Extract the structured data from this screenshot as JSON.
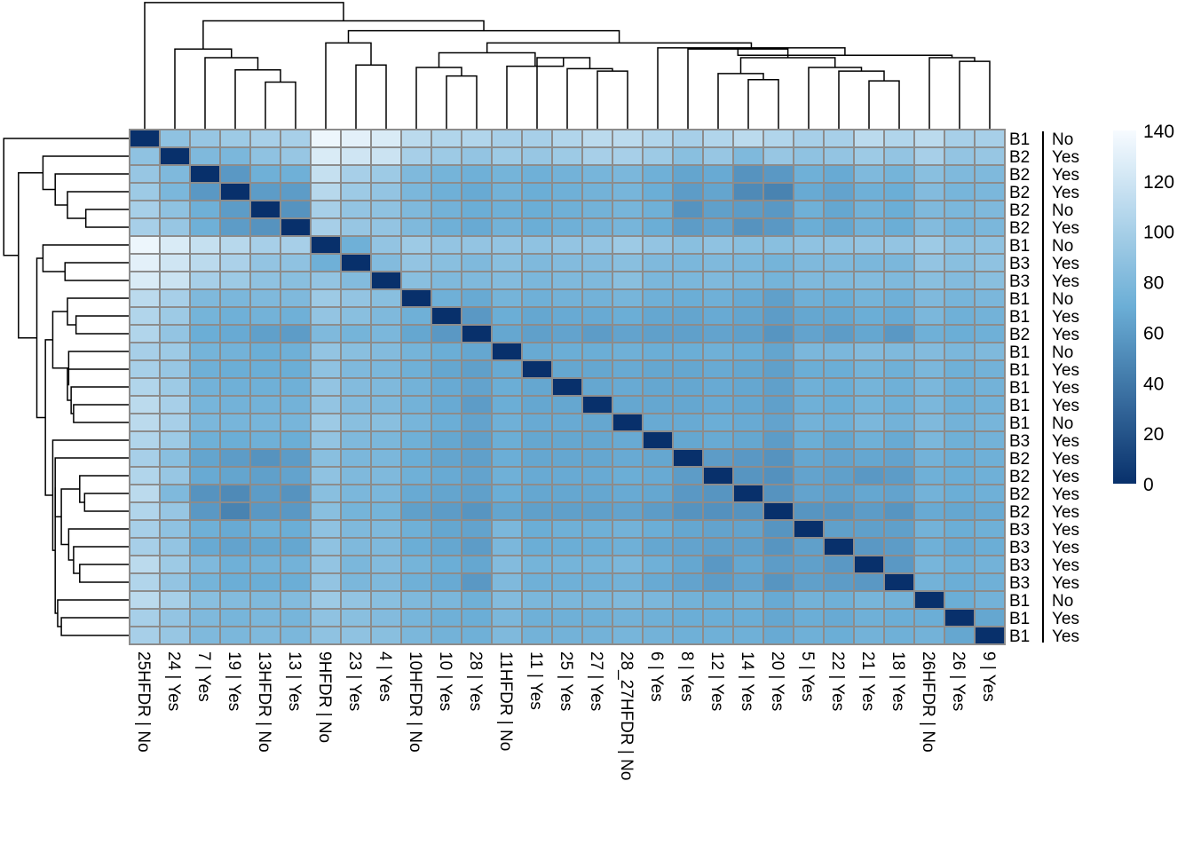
{
  "chart_data": {
    "type": "heatmap",
    "title": "",
    "columns": [
      "25HFDR | No",
      "24 | Yes",
      "7 | Yes",
      "19 | Yes",
      "13HFDR | No",
      "13 | Yes",
      "9HFDR | No",
      "23 | Yes",
      "4 | Yes",
      "10HFDR | No",
      "10 | Yes",
      "28 | Yes",
      "11HFDR | No",
      "11 | Yes",
      "25 | Yes",
      "27 | Yes",
      "28_27HFDR | No",
      "6 | Yes",
      "8 | Yes",
      "12 | Yes",
      "14 | Yes",
      "20 | Yes",
      "5 | Yes",
      "22 | Yes",
      "21 | Yes",
      "18 | Yes",
      "26HFDR | No",
      "26 | Yes",
      "9 | Yes"
    ],
    "rows": [
      "B1 | No",
      "B2 | Yes",
      "B2 | Yes",
      "B2 | Yes",
      "B2 | No",
      "B2 | Yes",
      "B1 | No",
      "B3 | Yes",
      "B3 | Yes",
      "B1 | No",
      "B1 | Yes",
      "B2 | Yes",
      "B1 | No",
      "B1 | Yes",
      "B1 | Yes",
      "B1 | Yes",
      "B1 | No",
      "B3 | Yes",
      "B2 | Yes",
      "B2 | Yes",
      "B2 | Yes",
      "B2 | Yes",
      "B3 | Yes",
      "B3 | Yes",
      "B3 | Yes",
      "B3 | Yes",
      "B1 | No",
      "B1 | Yes",
      "B1 | Yes"
    ],
    "values": [
      [
        0,
        88,
        92,
        95,
        100,
        100,
        135,
        130,
        125,
        110,
        105,
        105,
        100,
        100,
        105,
        110,
        110,
        105,
        100,
        105,
        110,
        105,
        100,
        100,
        110,
        105,
        110,
        100,
        100
      ],
      [
        88,
        0,
        80,
        78,
        88,
        92,
        125,
        120,
        118,
        100,
        95,
        90,
        95,
        92,
        95,
        100,
        100,
        95,
        85,
        92,
        80,
        92,
        88,
        90,
        95,
        90,
        100,
        90,
        92
      ],
      [
        92,
        80,
        0,
        58,
        72,
        72,
        115,
        100,
        95,
        80,
        75,
        72,
        75,
        72,
        74,
        76,
        78,
        72,
        65,
        68,
        55,
        58,
        72,
        68,
        80,
        75,
        85,
        80,
        80
      ],
      [
        95,
        78,
        58,
        0,
        60,
        60,
        108,
        95,
        90,
        78,
        72,
        68,
        74,
        70,
        72,
        74,
        76,
        70,
        60,
        65,
        50,
        46,
        68,
        64,
        72,
        70,
        82,
        76,
        78
      ],
      [
        100,
        88,
        72,
        60,
        0,
        55,
        100,
        90,
        88,
        80,
        74,
        70,
        72,
        70,
        72,
        74,
        76,
        72,
        55,
        62,
        60,
        58,
        72,
        66,
        74,
        70,
        80,
        78,
        80
      ],
      [
        100,
        92,
        72,
        60,
        55,
        0,
        100,
        92,
        90,
        80,
        72,
        68,
        74,
        70,
        72,
        74,
        76,
        70,
        60,
        64,
        55,
        58,
        70,
        66,
        74,
        70,
        82,
        76,
        78
      ],
      [
        135,
        125,
        115,
        108,
        100,
        100,
        0,
        72,
        90,
        95,
        90,
        90,
        90,
        88,
        90,
        90,
        95,
        90,
        85,
        88,
        85,
        85,
        88,
        88,
        90,
        90,
        95,
        88,
        88
      ],
      [
        130,
        120,
        110,
        102,
        90,
        88,
        72,
        0,
        82,
        90,
        85,
        80,
        85,
        80,
        82,
        82,
        85,
        80,
        78,
        80,
        78,
        75,
        80,
        80,
        78,
        78,
        90,
        85,
        88
      ],
      [
        125,
        118,
        100,
        95,
        88,
        85,
        90,
        82,
        0,
        85,
        80,
        80,
        82,
        78,
        80,
        80,
        85,
        78,
        78,
        80,
        78,
        75,
        80,
        80,
        82,
        80,
        85,
        82,
        85
      ],
      [
        110,
        100,
        80,
        78,
        80,
        80,
        95,
        90,
        85,
        0,
        72,
        68,
        75,
        72,
        74,
        74,
        76,
        72,
        70,
        72,
        68,
        62,
        72,
        70,
        75,
        72,
        80,
        76,
        78
      ],
      [
        105,
        95,
        75,
        72,
        74,
        72,
        90,
        85,
        80,
        72,
        0,
        58,
        70,
        66,
        68,
        68,
        70,
        66,
        65,
        68,
        65,
        60,
        66,
        66,
        70,
        68,
        78,
        72,
        74
      ],
      [
        105,
        90,
        70,
        68,
        62,
        60,
        80,
        75,
        78,
        66,
        58,
        0,
        66,
        62,
        64,
        60,
        64,
        62,
        62,
        64,
        62,
        56,
        64,
        60,
        66,
        58,
        72,
        70,
        72
      ],
      [
        100,
        95,
        75,
        74,
        70,
        72,
        90,
        85,
        82,
        75,
        70,
        66,
        0,
        68,
        70,
        70,
        72,
        70,
        70,
        72,
        70,
        65,
        78,
        78,
        82,
        80,
        82,
        78,
        80
      ],
      [
        100,
        92,
        72,
        70,
        70,
        70,
        88,
        80,
        78,
        72,
        66,
        62,
        68,
        0,
        66,
        66,
        68,
        66,
        66,
        68,
        66,
        62,
        70,
        70,
        75,
        72,
        78,
        72,
        74
      ],
      [
        105,
        95,
        74,
        72,
        72,
        72,
        90,
        82,
        80,
        74,
        68,
        64,
        70,
        66,
        0,
        66,
        68,
        66,
        66,
        68,
        66,
        62,
        72,
        70,
        75,
        72,
        78,
        72,
        74
      ],
      [
        110,
        100,
        76,
        74,
        74,
        74,
        90,
        82,
        80,
        74,
        68,
        60,
        70,
        66,
        66,
        0,
        66,
        66,
        66,
        68,
        66,
        62,
        72,
        70,
        75,
        72,
        78,
        72,
        74
      ],
      [
        110,
        100,
        78,
        76,
        76,
        76,
        95,
        85,
        85,
        76,
        70,
        64,
        72,
        68,
        68,
        66,
        0,
        68,
        68,
        70,
        68,
        64,
        74,
        72,
        78,
        74,
        80,
        74,
        76
      ],
      [
        105,
        95,
        72,
        70,
        72,
        70,
        90,
        80,
        78,
        72,
        66,
        62,
        70,
        66,
        66,
        66,
        68,
        0,
        66,
        68,
        66,
        60,
        70,
        66,
        72,
        68,
        78,
        72,
        74
      ],
      [
        100,
        85,
        65,
        60,
        55,
        60,
        85,
        78,
        78,
        70,
        65,
        62,
        70,
        66,
        66,
        66,
        68,
        66,
        0,
        60,
        58,
        55,
        66,
        64,
        66,
        64,
        74,
        70,
        72
      ],
      [
        105,
        92,
        68,
        65,
        62,
        64,
        88,
        80,
        80,
        72,
        68,
        64,
        72,
        68,
        68,
        68,
        70,
        68,
        60,
        0,
        56,
        54,
        64,
        62,
        58,
        60,
        72,
        70,
        72
      ],
      [
        110,
        80,
        55,
        50,
        60,
        55,
        85,
        78,
        78,
        68,
        65,
        62,
        70,
        66,
        66,
        66,
        68,
        66,
        58,
        56,
        0,
        55,
        64,
        62,
        66,
        64,
        74,
        70,
        72
      ],
      [
        105,
        92,
        58,
        46,
        58,
        58,
        85,
        75,
        75,
        62,
        60,
        56,
        65,
        62,
        62,
        62,
        64,
        60,
        55,
        54,
        55,
        0,
        56,
        56,
        60,
        56,
        68,
        66,
        68
      ],
      [
        100,
        88,
        72,
        68,
        72,
        70,
        88,
        80,
        80,
        72,
        66,
        64,
        78,
        70,
        72,
        72,
        74,
        70,
        66,
        64,
        64,
        56,
        0,
        62,
        62,
        62,
        74,
        70,
        72
      ],
      [
        100,
        90,
        68,
        64,
        66,
        66,
        88,
        80,
        80,
        70,
        66,
        60,
        78,
        70,
        70,
        70,
        72,
        66,
        64,
        62,
        62,
        56,
        62,
        0,
        58,
        60,
        72,
        68,
        70
      ],
      [
        110,
        95,
        80,
        72,
        74,
        74,
        90,
        78,
        82,
        75,
        70,
        66,
        82,
        75,
        75,
        75,
        78,
        72,
        66,
        58,
        66,
        60,
        62,
        58,
        0,
        58,
        76,
        72,
        74
      ],
      [
        105,
        90,
        75,
        70,
        70,
        70,
        90,
        78,
        80,
        72,
        68,
        58,
        80,
        72,
        72,
        72,
        74,
        68,
        64,
        60,
        64,
        56,
        62,
        60,
        58,
        0,
        74,
        70,
        72
      ],
      [
        110,
        100,
        85,
        82,
        80,
        82,
        95,
        90,
        85,
        80,
        78,
        72,
        82,
        78,
        78,
        78,
        80,
        78,
        74,
        72,
        74,
        68,
        74,
        72,
        76,
        74,
        0,
        70,
        74
      ],
      [
        100,
        90,
        80,
        76,
        78,
        76,
        88,
        85,
        82,
        76,
        72,
        70,
        78,
        72,
        72,
        72,
        74,
        72,
        70,
        70,
        70,
        66,
        70,
        68,
        72,
        70,
        70,
        0,
        66
      ],
      [
        100,
        92,
        80,
        78,
        80,
        78,
        88,
        88,
        85,
        78,
        74,
        72,
        80,
        74,
        74,
        74,
        76,
        74,
        72,
        72,
        72,
        68,
        72,
        70,
        74,
        72,
        74,
        66,
        0
      ]
    ],
    "legend": {
      "ticks": [
        0,
        20,
        40,
        60,
        80,
        100,
        120,
        140
      ],
      "range": [
        0,
        140
      ]
    },
    "colors": {
      "low": "#08306b",
      "mid": "#6baed6",
      "high": "#f7fbff",
      "cell_border": "#8c8c8c"
    }
  }
}
